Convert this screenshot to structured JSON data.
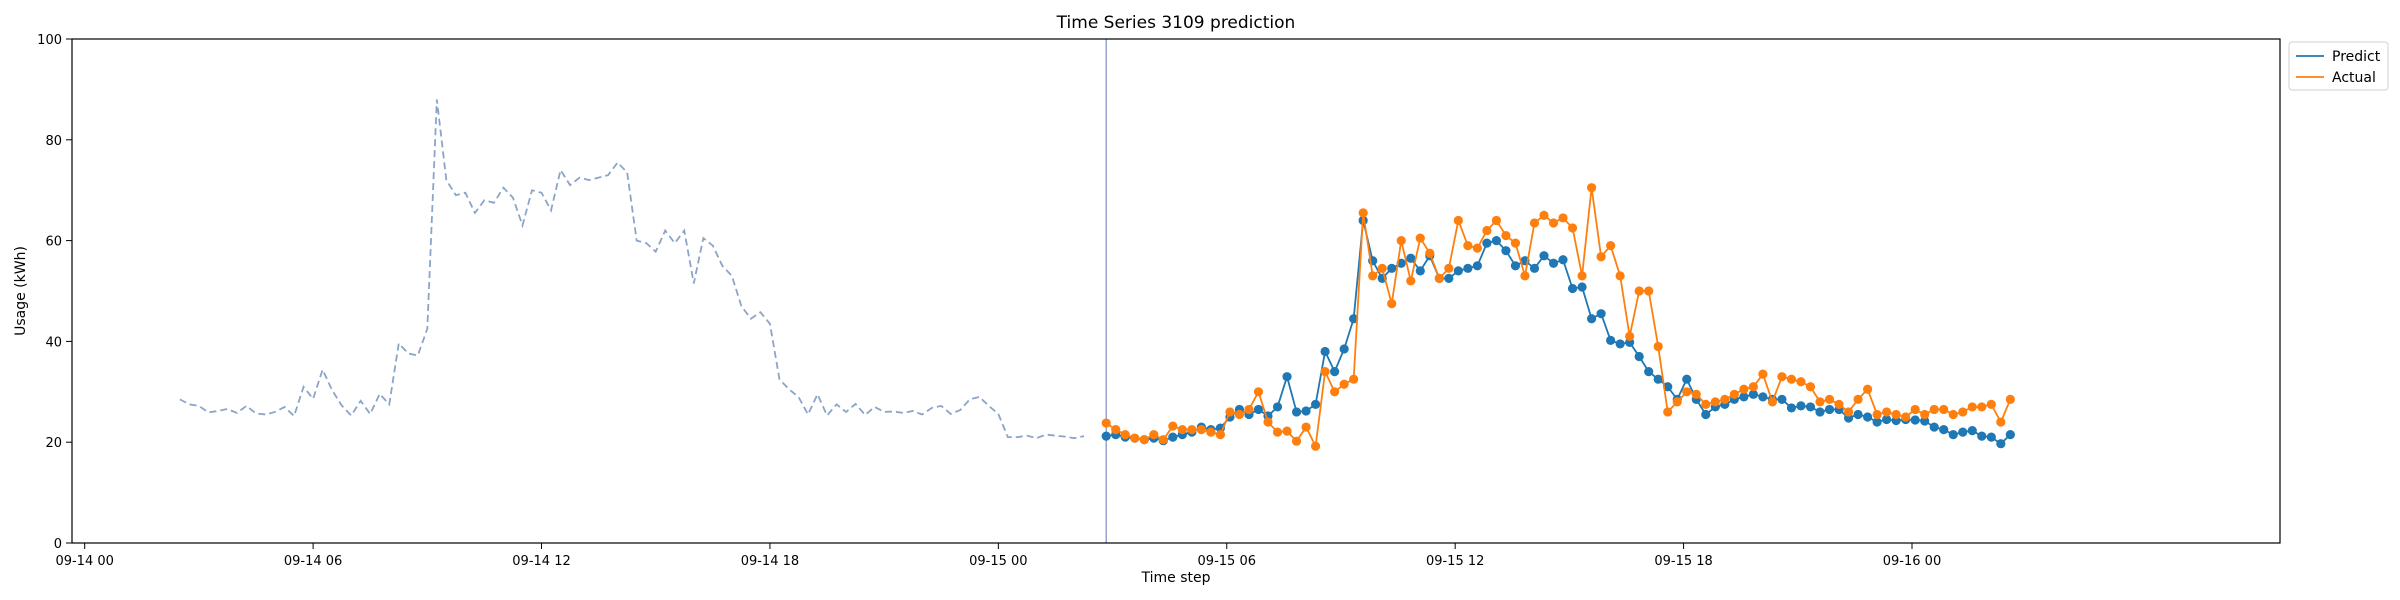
{
  "chart_data": {
    "type": "line",
    "title": "Time Series 3109 prediction",
    "xlabel": "Time step",
    "ylabel": "Usage (kWh)",
    "ylim": [
      0,
      100
    ],
    "xlim": [
      "09-13 23:40",
      "09-16 09:40"
    ],
    "x_ticks": [
      "09-14 00",
      "09-14 06",
      "09-14 12",
      "09-14 18",
      "09-15 00",
      "09-15 06",
      "09-15 12",
      "09-15 18",
      "09-16 00"
    ],
    "y_ticks": [
      0,
      20,
      40,
      60,
      80,
      100
    ],
    "grid": false,
    "legend_position": "outside-top-right",
    "forecast_start": "09-15 02:50",
    "colors": {
      "history": "#8aa5c8",
      "predict": "#1f77b4",
      "actual": "#ff7f0e",
      "forecast_line": "#8796c8"
    },
    "history": {
      "start": "09-14 02:30",
      "step_minutes": 15,
      "values": [
        28.5,
        27.5,
        27.2,
        25.9,
        26.2,
        26.6,
        25.8,
        27.2,
        25.7,
        25.5,
        26.0,
        27.0,
        25.2,
        31.0,
        28.6,
        34.4,
        30.3,
        27.3,
        25.3,
        28.2,
        25.6,
        29.6,
        27.5,
        39.6,
        37.6,
        37.2,
        42.5,
        88.0,
        72.0,
        69.0,
        69.5,
        65.5,
        68.0,
        67.5,
        70.5,
        68.5,
        63.0,
        70.0,
        69.5,
        66.0,
        74.0,
        71.0,
        72.5,
        72.0,
        72.5,
        73.0,
        75.5,
        73.5,
        60.0,
        59.5,
        57.8,
        62.0,
        59.5,
        62.0,
        51.5,
        60.5,
        59.0,
        55.0,
        53.0,
        47.0,
        44.5,
        45.8,
        43.5,
        32.5,
        30.5,
        29.0,
        25.5,
        29.5,
        25.3,
        27.5,
        26.0,
        27.6,
        25.4,
        27.0,
        26.0,
        26.1,
        25.8,
        26.2,
        25.5,
        26.8,
        27.2,
        25.6,
        26.4,
        28.5,
        29.0,
        27.2,
        25.6,
        21.0,
        21.0,
        21.3,
        20.8,
        21.5,
        21.3,
        21.1,
        20.8,
        21.2
      ]
    },
    "series": [
      {
        "name": "Predict",
        "start": "09-15 02:50",
        "step_minutes": 15,
        "values": [
          21.2,
          21.5,
          21.0,
          20.8,
          20.5,
          20.8,
          20.3,
          21.0,
          21.5,
          22.0,
          23.0,
          22.5,
          22.8,
          25.0,
          26.5,
          25.5,
          26.5,
          25.2,
          27.0,
          33.0,
          26.0,
          26.2,
          27.5,
          38.0,
          34.0,
          38.5,
          44.5,
          64.0,
          56.0,
          52.5,
          54.5,
          55.5,
          56.5,
          54.0,
          57.0,
          52.5,
          52.5,
          54.0,
          54.5,
          55.0,
          59.5,
          60.0,
          58.0,
          55.0,
          56.0,
          54.5,
          57.0,
          55.5,
          56.2,
          50.5,
          50.8,
          44.5,
          45.5,
          40.2,
          39.5,
          39.8,
          37.0,
          34.0,
          32.5,
          31.0,
          28.5,
          32.5,
          28.5,
          25.5,
          27.0,
          27.5,
          28.5,
          29.0,
          29.5,
          29.0,
          28.5,
          28.5,
          26.8,
          27.2,
          27.0,
          26.0,
          26.5,
          26.5,
          24.8,
          25.5,
          25.0,
          24.0,
          24.5,
          24.3,
          24.5,
          24.4,
          24.2,
          23.0,
          22.5,
          21.5,
          22.0,
          22.3,
          21.2,
          21.0,
          19.7,
          21.5
        ]
      },
      {
        "name": "Actual",
        "start": "09-15 02:50",
        "step_minutes": 15,
        "values": [
          23.8,
          22.5,
          21.5,
          20.8,
          20.5,
          21.5,
          20.5,
          23.2,
          22.5,
          22.5,
          22.5,
          22.0,
          21.5,
          26.0,
          25.5,
          26.5,
          30.0,
          24.0,
          22.0,
          22.2,
          20.2,
          23.0,
          19.2,
          34.0,
          30.0,
          31.5,
          32.5,
          65.5,
          53.0,
          54.5,
          47.5,
          60.0,
          52.0,
          60.5,
          57.5,
          52.5,
          54.5,
          64.0,
          59.0,
          58.5,
          62.0,
          64.0,
          61.0,
          59.5,
          53.0,
          63.5,
          65.0,
          63.5,
          64.5,
          62.5,
          53.0,
          70.5,
          56.8,
          59.0,
          53.0,
          41.0,
          50.0,
          50.0,
          39.0,
          26.0,
          28.0,
          30.0,
          29.5,
          27.5,
          28.0,
          28.5,
          29.5,
          30.5,
          31.0,
          33.5,
          28.0,
          33.0,
          32.5,
          32.0,
          31.0,
          28.0,
          28.5,
          27.5,
          26.0,
          28.5,
          30.5,
          25.5,
          26.0,
          25.5,
          25.0,
          26.5,
          25.5,
          26.5,
          26.5,
          25.5,
          26.0,
          27.0,
          27.0,
          27.5,
          24.0,
          28.5
        ]
      }
    ]
  }
}
